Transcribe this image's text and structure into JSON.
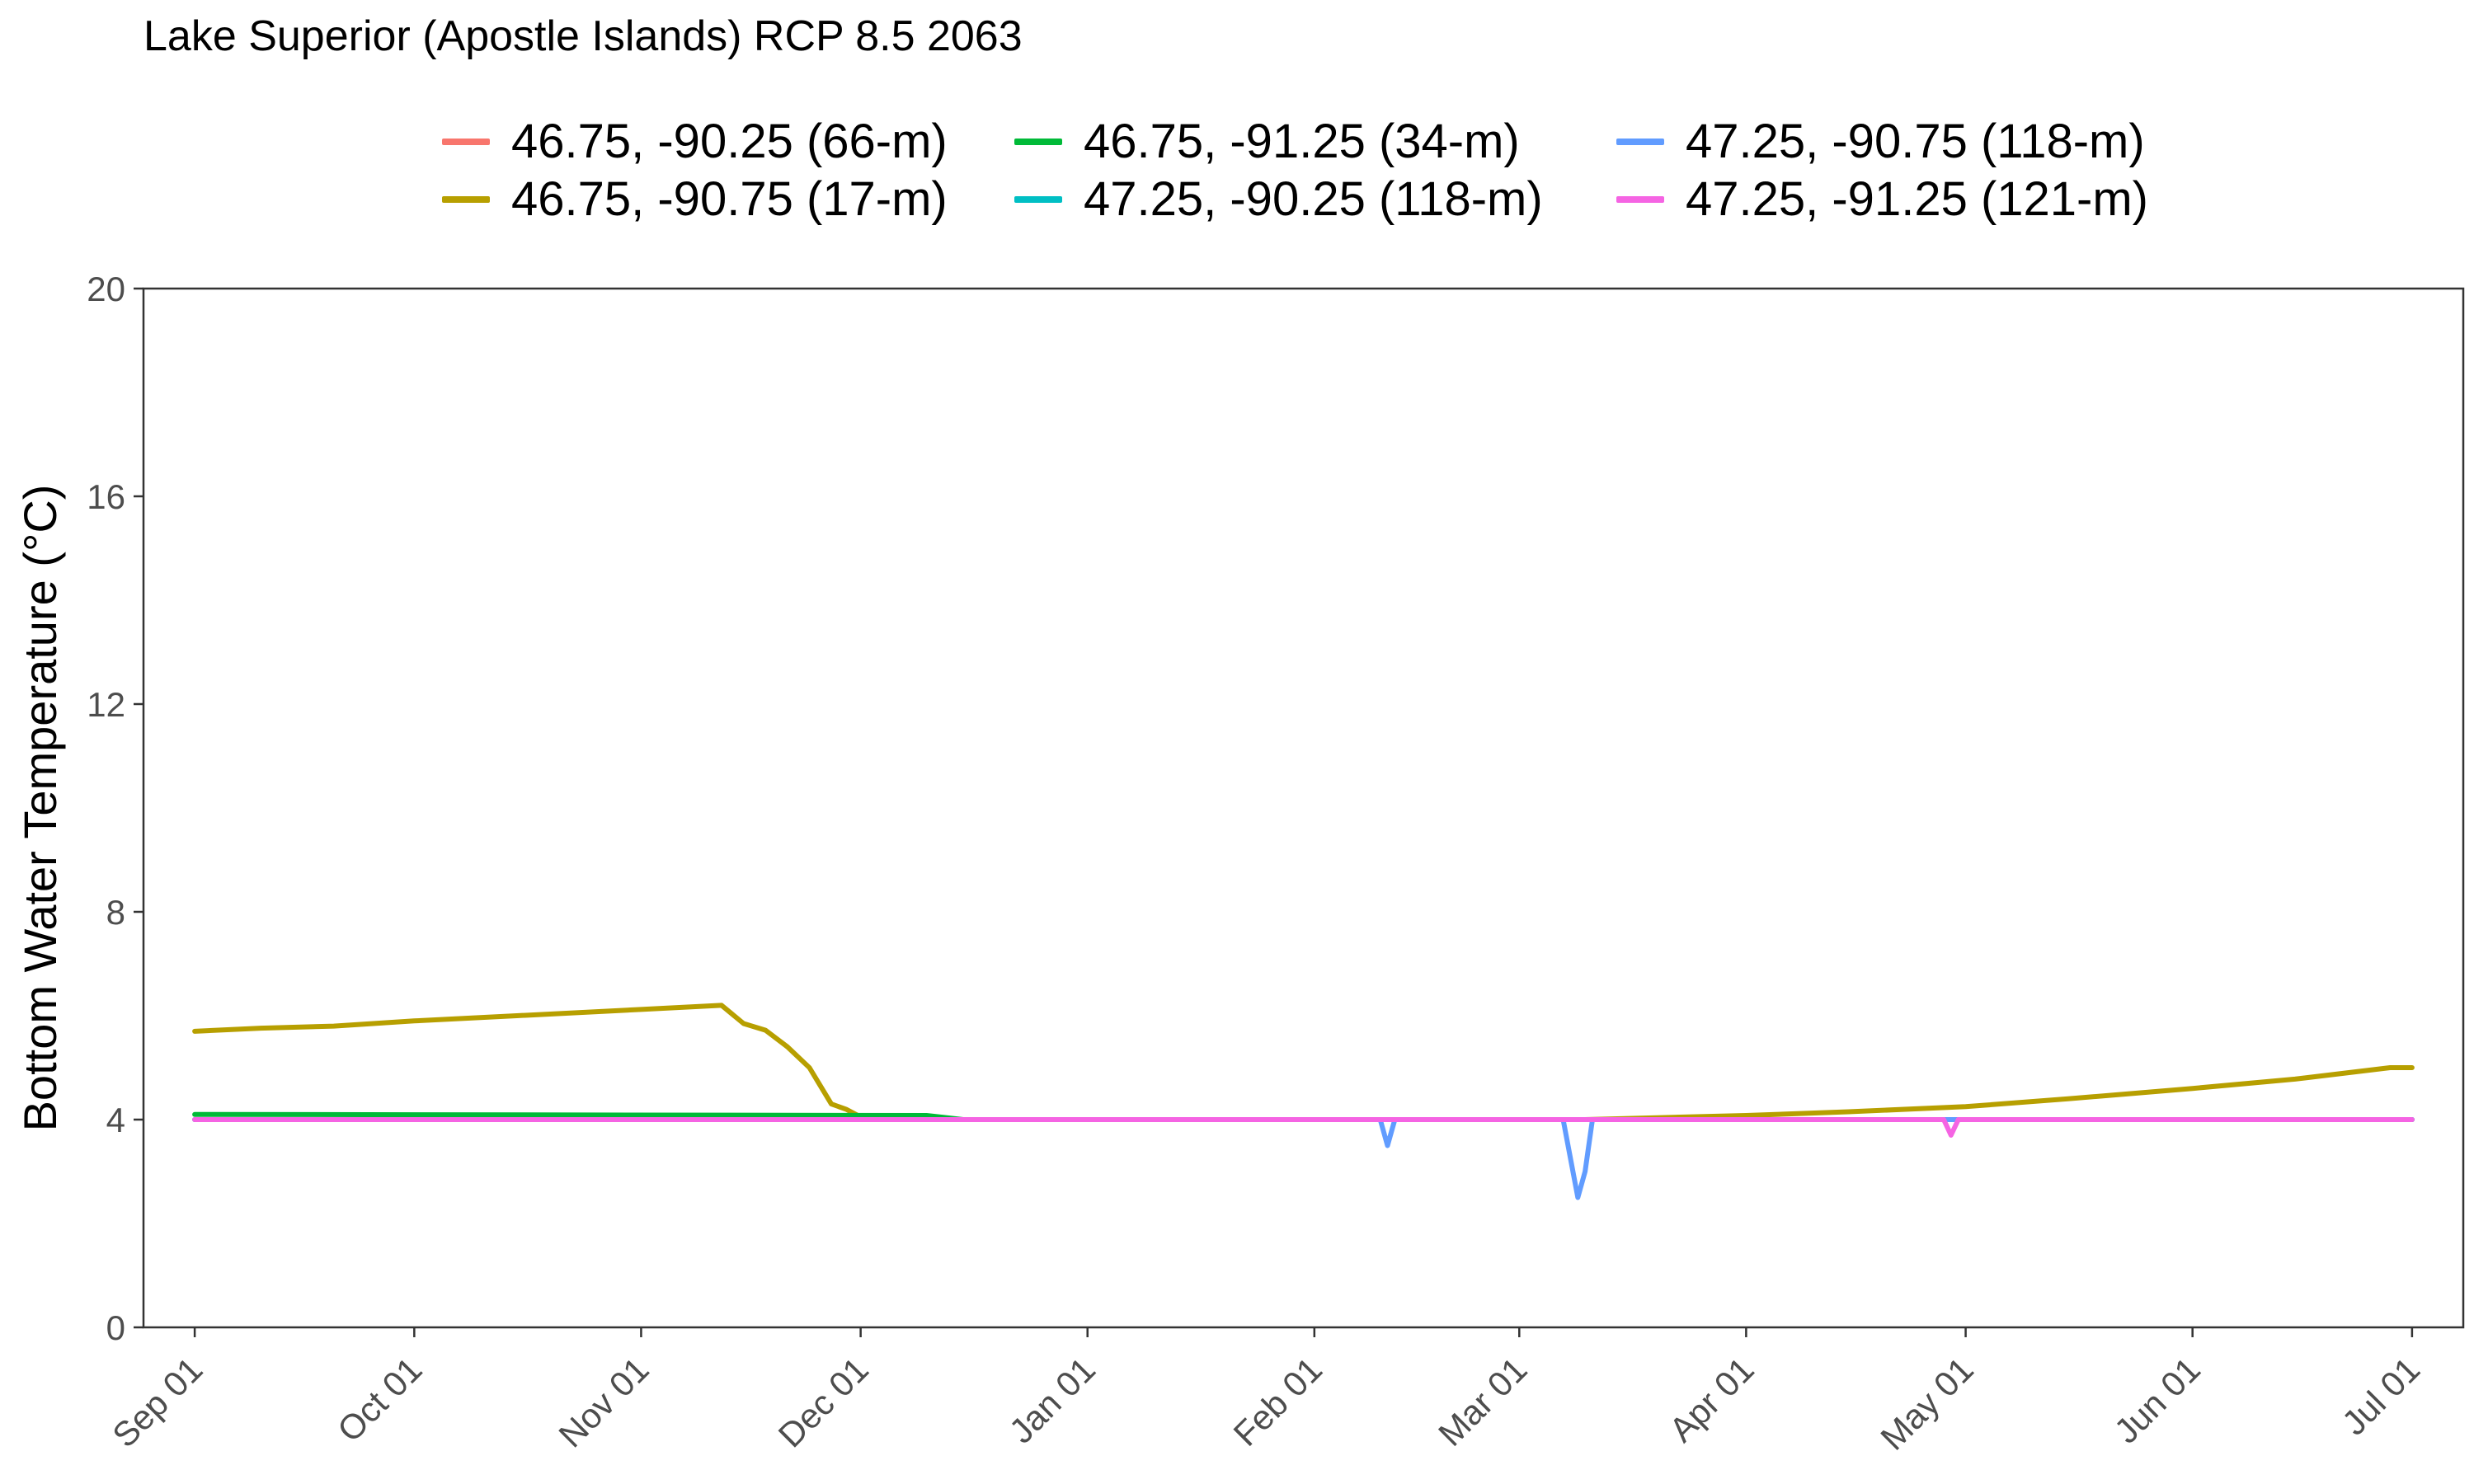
{
  "chart_data": {
    "type": "line",
    "title": "Lake Superior (Apostle Islands) RCP 8.5 2063",
    "xlabel": "",
    "ylabel": "Bottom Water Temperature (°C)",
    "ylim": [
      0,
      20
    ],
    "yticks": [
      0,
      4,
      8,
      12,
      16,
      20
    ],
    "xlim": [
      "2062-08-25",
      "2063-07-08"
    ],
    "xticks": [
      {
        "label": "Sep 01",
        "date": "2062-09-01"
      },
      {
        "label": "Oct 01",
        "date": "2062-10-01"
      },
      {
        "label": "Nov 01",
        "date": "2062-11-01"
      },
      {
        "label": "Dec 01",
        "date": "2062-12-01"
      },
      {
        "label": "Jan 01",
        "date": "2063-01-01"
      },
      {
        "label": "Feb 01",
        "date": "2063-02-01"
      },
      {
        "label": "Mar 01",
        "date": "2063-03-01"
      },
      {
        "label": "Apr 01",
        "date": "2063-04-01"
      },
      {
        "label": "May 01",
        "date": "2063-05-01"
      },
      {
        "label": "Jun 01",
        "date": "2063-06-01"
      },
      {
        "label": "Jul 01",
        "date": "2063-07-01"
      }
    ],
    "grid": false,
    "legend_position": "top",
    "series": [
      {
        "name": "46.75, -90.25 (66-m)",
        "color": "#F8766D",
        "points": [
          [
            "2062-09-01",
            4.0
          ],
          [
            "2063-07-01",
            4.0
          ]
        ]
      },
      {
        "name": "46.75, -90.75 (17-m)",
        "color": "#B79F00",
        "points": [
          [
            "2062-09-01",
            5.7
          ],
          [
            "2062-09-10",
            5.76
          ],
          [
            "2062-09-20",
            5.8
          ],
          [
            "2062-10-01",
            5.9
          ],
          [
            "2062-10-15",
            6.0
          ],
          [
            "2062-11-01",
            6.12
          ],
          [
            "2062-11-12",
            6.2
          ],
          [
            "2062-11-15",
            5.85
          ],
          [
            "2062-11-18",
            5.72
          ],
          [
            "2062-11-21",
            5.4
          ],
          [
            "2062-11-24",
            5.0
          ],
          [
            "2062-11-27",
            4.3
          ],
          [
            "2062-11-29",
            4.2
          ],
          [
            "2062-12-01",
            4.05
          ],
          [
            "2062-12-05",
            4.02
          ],
          [
            "2062-12-15",
            4.0
          ],
          [
            "2063-03-10",
            4.0
          ],
          [
            "2063-04-01",
            4.08
          ],
          [
            "2063-04-15",
            4.15
          ],
          [
            "2063-05-01",
            4.25
          ],
          [
            "2063-05-15",
            4.4
          ],
          [
            "2063-06-01",
            4.6
          ],
          [
            "2063-06-15",
            4.78
          ],
          [
            "2063-06-28",
            5.0
          ],
          [
            "2063-07-01",
            5.0
          ]
        ]
      },
      {
        "name": "46.75, -91.25 (34-m)",
        "color": "#00BA38",
        "points": [
          [
            "2062-09-01",
            4.1
          ],
          [
            "2062-12-10",
            4.08
          ],
          [
            "2062-12-15",
            4.0
          ],
          [
            "2063-07-01",
            4.0
          ]
        ]
      },
      {
        "name": "47.25, -90.25 (118-m)",
        "color": "#00BFC4",
        "points": [
          [
            "2062-09-01",
            4.0
          ],
          [
            "2063-07-01",
            4.0
          ]
        ]
      },
      {
        "name": "47.25, -90.75 (118-m)",
        "color": "#619CFF",
        "points": [
          [
            "2062-09-01",
            4.0
          ],
          [
            "2063-02-10",
            4.0
          ],
          [
            "2063-02-11",
            3.5
          ],
          [
            "2063-02-12",
            4.0
          ],
          [
            "2063-03-07",
            4.0
          ],
          [
            "2063-03-09",
            2.5
          ],
          [
            "2063-03-10",
            3.0
          ],
          [
            "2063-03-11",
            4.0
          ],
          [
            "2063-07-01",
            4.0
          ]
        ]
      },
      {
        "name": "47.25, -91.25 (121-m)",
        "color": "#F564E3",
        "points": [
          [
            "2062-09-01",
            4.0
          ],
          [
            "2063-04-28",
            4.0
          ],
          [
            "2063-04-29",
            3.7
          ],
          [
            "2063-04-30",
            4.0
          ],
          [
            "2063-07-01",
            4.0
          ]
        ]
      }
    ]
  }
}
